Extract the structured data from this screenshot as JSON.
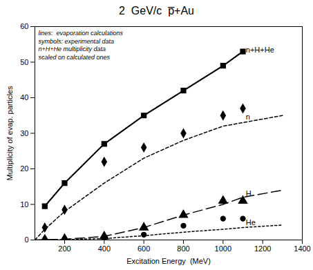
{
  "chart_data": {
    "type": "line",
    "title": "2  GeV/c  p̅+Au",
    "xlabel": "Excitation Energy  (MeV)",
    "ylabel": "Multiplicity of evap. particles",
    "background": "#ffffff",
    "series": [
      {
        "name": "n",
        "type": "line",
        "line_style": "dashed",
        "color": "#000000",
        "x": [
          50,
          100,
          200,
          400,
          600,
          800,
          1000,
          1100,
          1300
        ],
        "values": [
          0,
          3,
          8,
          16,
          23,
          28,
          32,
          33,
          35
        ]
      },
      {
        "name": "H",
        "type": "line",
        "line_style": "longdash",
        "color": "#000000",
        "x": [
          50,
          200,
          400,
          600,
          800,
          1000,
          1100,
          1300
        ],
        "values": [
          0,
          0.2,
          1.0,
          3.5,
          7,
          10,
          12,
          14
        ]
      },
      {
        "name": "He",
        "type": "line",
        "line_style": "dotted",
        "color": "#000000",
        "x": [
          50,
          200,
          400,
          600,
          800,
          1000,
          1100,
          1300
        ],
        "values": [
          0,
          0.1,
          0.4,
          1.2,
          2.2,
          3.0,
          3.5,
          4.2
        ]
      },
      {
        "name": "n+H+He",
        "type": "line",
        "line_style": "solid",
        "color": "#000000",
        "x": [
          100,
          200,
          400,
          600,
          800,
          1000,
          1100
        ],
        "values": [
          9.5,
          16,
          27,
          35,
          42,
          49,
          53
        ]
      },
      {
        "name": "n",
        "type": "scatter",
        "marker": "diamond",
        "color": "#000000",
        "x": [
          100,
          200,
          400,
          600,
          800,
          1000,
          1100
        ],
        "values": [
          3.5,
          8.5,
          22,
          26,
          30,
          35,
          37
        ]
      },
      {
        "name": "H",
        "type": "scatter",
        "marker": "triangle",
        "color": "#000000",
        "x": [
          100,
          200,
          400,
          600,
          800,
          1000,
          1100
        ],
        "values": [
          0.1,
          0.3,
          1.0,
          3.5,
          7,
          11,
          11
        ]
      },
      {
        "name": "He",
        "type": "scatter",
        "marker": "circle",
        "color": "#000000",
        "x": [
          100,
          200,
          400,
          600,
          800,
          1000,
          1100
        ],
        "values": [
          0.1,
          0.2,
          0.5,
          1.5,
          4,
          6,
          6
        ]
      },
      {
        "name": "n+H+He",
        "type": "line",
        "marker": "square",
        "line_style": "solid",
        "color": "#000000",
        "x": [
          100,
          200,
          400,
          600,
          800,
          1000,
          1100
        ],
        "values": [
          9.5,
          16,
          27,
          35,
          42,
          49,
          53
        ]
      }
    ],
    "annotations": [
      {
        "text": "lines:  evaporation calculations\nsymbols: experimental data\nn+H+He multiplicity data\nscaled on calculated ones"
      },
      {
        "text": "n",
        "x": 1115,
        "y": 34.5
      },
      {
        "text": "H",
        "x": 1115,
        "y": 13.0
      },
      {
        "text": "He",
        "x": 1115,
        "y": 4.8
      },
      {
        "text": "n+H+He",
        "x": 1115,
        "y": 53.5
      }
    ],
    "xlim": [
      50,
      1400
    ],
    "ylim": [
      0,
      60
    ],
    "xticks": [
      200,
      400,
      600,
      800,
      1000,
      1200,
      1400
    ],
    "yticks": [
      0,
      10,
      20,
      30,
      40,
      50,
      60
    ],
    "grid": false
  }
}
